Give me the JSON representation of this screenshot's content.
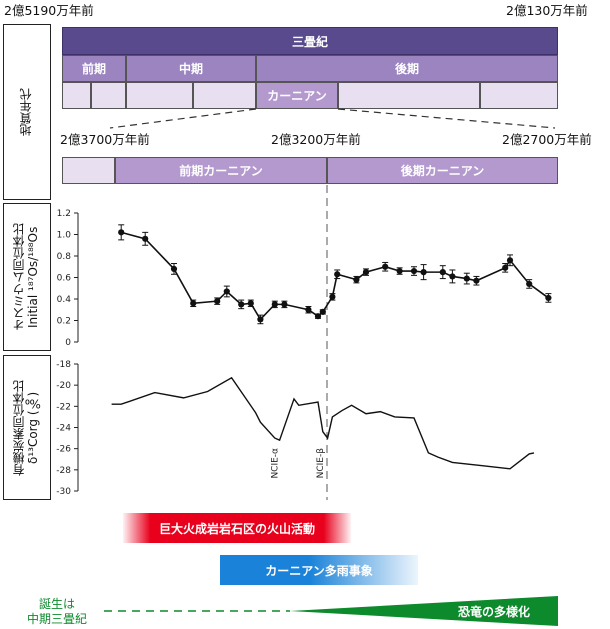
{
  "section_labels": {
    "geologic_age": "地質年代",
    "osmium": "オスミウム同位体比",
    "osmium_axis": "Initial ¹⁸⁷Os/¹⁸⁸Os",
    "carbon": "有機炭素同位体比",
    "carbon_axis": "δ¹³Corg (‰)"
  },
  "timeline": {
    "top_left": "2億5190万年前",
    "top_right": "2億130万年前",
    "period": "三畳紀",
    "epochs": [
      "前期",
      "中期",
      "後期"
    ],
    "carnian": "カーニアン",
    "zoom_left": "2億3700万年前",
    "zoom_mid": "2億3200万年前",
    "zoom_right": "2億2700万年前",
    "early_carnian": "前期カーニアン",
    "late_carnian": "後期カーニアン"
  },
  "colors": {
    "period": "#584a8c",
    "epoch": "#9b84bf",
    "carnian": "#b499cf",
    "stage_light": "#e8e0f0",
    "wrangellia": "#e8001c",
    "pluvial": "#1a82d8",
    "dino": "#0c8a2c"
  },
  "chart_data": [
    {
      "type": "scatter",
      "ylabel": "Initial ¹⁸⁷Os/¹⁸⁸Os",
      "ylim": [
        0,
        1.2
      ],
      "yticks": [
        "1.2",
        "1.0",
        "0.8",
        "0.6",
        "0.4",
        "0.2",
        "0"
      ],
      "grid": false,
      "points": [
        {
          "x": 0.09,
          "y": 1.02,
          "err": 0.07
        },
        {
          "x": 0.14,
          "y": 0.96,
          "err": 0.06
        },
        {
          "x": 0.2,
          "y": 0.68,
          "err": 0.05
        },
        {
          "x": 0.24,
          "y": 0.36,
          "err": 0.03
        },
        {
          "x": 0.29,
          "y": 0.38,
          "err": 0.03
        },
        {
          "x": 0.31,
          "y": 0.47,
          "err": 0.05
        },
        {
          "x": 0.34,
          "y": 0.35,
          "err": 0.04
        },
        {
          "x": 0.36,
          "y": 0.36,
          "err": 0.03
        },
        {
          "x": 0.38,
          "y": 0.21,
          "err": 0.04
        },
        {
          "x": 0.41,
          "y": 0.35,
          "err": 0.03
        },
        {
          "x": 0.43,
          "y": 0.35,
          "err": 0.03
        },
        {
          "x": 0.48,
          "y": 0.3,
          "err": 0.03
        },
        {
          "x": 0.5,
          "y": 0.24,
          "err": 0.02
        },
        {
          "x": 0.51,
          "y": 0.28,
          "err": 0.02
        },
        {
          "x": 0.53,
          "y": 0.42,
          "err": 0.03
        },
        {
          "x": 0.54,
          "y": 0.63,
          "err": 0.04
        },
        {
          "x": 0.58,
          "y": 0.58,
          "err": 0.03
        },
        {
          "x": 0.6,
          "y": 0.65,
          "err": 0.03
        },
        {
          "x": 0.64,
          "y": 0.7,
          "err": 0.04
        },
        {
          "x": 0.67,
          "y": 0.66,
          "err": 0.03
        },
        {
          "x": 0.7,
          "y": 0.66,
          "err": 0.04
        },
        {
          "x": 0.72,
          "y": 0.65,
          "err": 0.07
        },
        {
          "x": 0.76,
          "y": 0.65,
          "err": 0.06
        },
        {
          "x": 0.78,
          "y": 0.61,
          "err": 0.06
        },
        {
          "x": 0.81,
          "y": 0.59,
          "err": 0.05
        },
        {
          "x": 0.83,
          "y": 0.57,
          "err": 0.04
        },
        {
          "x": 0.89,
          "y": 0.69,
          "err": 0.04
        },
        {
          "x": 0.9,
          "y": 0.76,
          "err": 0.05
        },
        {
          "x": 0.94,
          "y": 0.54,
          "err": 0.04
        },
        {
          "x": 0.98,
          "y": 0.41,
          "err": 0.04
        }
      ]
    },
    {
      "type": "line",
      "ylabel": "δ¹³Corg (‰)",
      "ylim": [
        -30,
        -18
      ],
      "yticks": [
        "-18",
        "-20",
        "-22",
        "-24",
        "-26",
        "-28",
        "-30"
      ],
      "grid": false,
      "x": [
        0.07,
        0.09,
        0.16,
        0.22,
        0.27,
        0.32,
        0.37,
        0.38,
        0.41,
        0.42,
        0.45,
        0.46,
        0.5,
        0.51,
        0.52,
        0.53,
        0.55,
        0.57,
        0.6,
        0.63,
        0.66,
        0.7,
        0.73,
        0.75,
        0.78,
        0.84,
        0.9,
        0.94,
        0.95
      ],
      "y": [
        -21.8,
        -21.8,
        -20.7,
        -21.2,
        -20.6,
        -19.3,
        -22.6,
        -23.5,
        -25.0,
        -25.2,
        -21.3,
        -21.9,
        -21.6,
        -24.4,
        -25.0,
        -23.0,
        -22.4,
        -21.9,
        -22.7,
        -22.5,
        -23.0,
        -23.1,
        -26.4,
        -26.8,
        -27.3,
        -27.6,
        -27.9,
        -26.5,
        -26.4
      ],
      "annotations": [
        "NCIE-α",
        "NCIE-β"
      ]
    }
  ],
  "events": {
    "wrangellia": "巨大火成岩岩石区の火山活動",
    "pluvial": "カーニアン多雨事象",
    "dino_origin_line1": "誕生は",
    "dino_origin_line2": "中期三畳紀",
    "dino_diversification": "恐竜の多様化"
  }
}
